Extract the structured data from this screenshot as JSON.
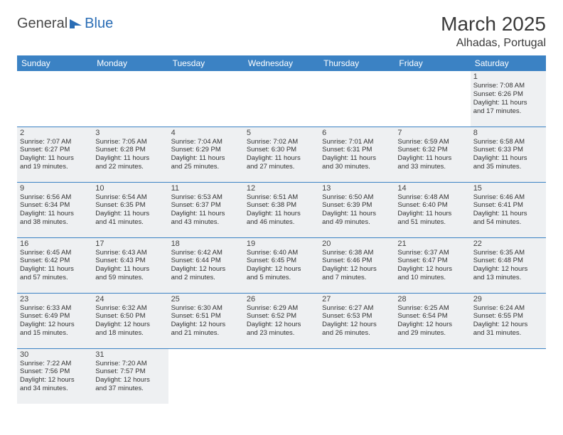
{
  "logo": {
    "word1": "General",
    "word2": "Blue"
  },
  "title": "March 2025",
  "location": "Alhadas, Portugal",
  "colors": {
    "header_bg": "#3b82c4",
    "header_fg": "#ffffff",
    "cell_fill": "#eef0f2",
    "cell_border": "#3b82c4",
    "logo_blue": "#2a6db5"
  },
  "weekdays": [
    "Sunday",
    "Monday",
    "Tuesday",
    "Wednesday",
    "Thursday",
    "Friday",
    "Saturday"
  ],
  "weeks": [
    [
      null,
      null,
      null,
      null,
      null,
      null,
      {
        "d": "1",
        "sr": "Sunrise: 7:08 AM",
        "ss": "Sunset: 6:26 PM",
        "dl1": "Daylight: 11 hours",
        "dl2": "and 17 minutes."
      }
    ],
    [
      {
        "d": "2",
        "sr": "Sunrise: 7:07 AM",
        "ss": "Sunset: 6:27 PM",
        "dl1": "Daylight: 11 hours",
        "dl2": "and 19 minutes."
      },
      {
        "d": "3",
        "sr": "Sunrise: 7:05 AM",
        "ss": "Sunset: 6:28 PM",
        "dl1": "Daylight: 11 hours",
        "dl2": "and 22 minutes."
      },
      {
        "d": "4",
        "sr": "Sunrise: 7:04 AM",
        "ss": "Sunset: 6:29 PM",
        "dl1": "Daylight: 11 hours",
        "dl2": "and 25 minutes."
      },
      {
        "d": "5",
        "sr": "Sunrise: 7:02 AM",
        "ss": "Sunset: 6:30 PM",
        "dl1": "Daylight: 11 hours",
        "dl2": "and 27 minutes."
      },
      {
        "d": "6",
        "sr": "Sunrise: 7:01 AM",
        "ss": "Sunset: 6:31 PM",
        "dl1": "Daylight: 11 hours",
        "dl2": "and 30 minutes."
      },
      {
        "d": "7",
        "sr": "Sunrise: 6:59 AM",
        "ss": "Sunset: 6:32 PM",
        "dl1": "Daylight: 11 hours",
        "dl2": "and 33 minutes."
      },
      {
        "d": "8",
        "sr": "Sunrise: 6:58 AM",
        "ss": "Sunset: 6:33 PM",
        "dl1": "Daylight: 11 hours",
        "dl2": "and 35 minutes."
      }
    ],
    [
      {
        "d": "9",
        "sr": "Sunrise: 6:56 AM",
        "ss": "Sunset: 6:34 PM",
        "dl1": "Daylight: 11 hours",
        "dl2": "and 38 minutes."
      },
      {
        "d": "10",
        "sr": "Sunrise: 6:54 AM",
        "ss": "Sunset: 6:35 PM",
        "dl1": "Daylight: 11 hours",
        "dl2": "and 41 minutes."
      },
      {
        "d": "11",
        "sr": "Sunrise: 6:53 AM",
        "ss": "Sunset: 6:37 PM",
        "dl1": "Daylight: 11 hours",
        "dl2": "and 43 minutes."
      },
      {
        "d": "12",
        "sr": "Sunrise: 6:51 AM",
        "ss": "Sunset: 6:38 PM",
        "dl1": "Daylight: 11 hours",
        "dl2": "and 46 minutes."
      },
      {
        "d": "13",
        "sr": "Sunrise: 6:50 AM",
        "ss": "Sunset: 6:39 PM",
        "dl1": "Daylight: 11 hours",
        "dl2": "and 49 minutes."
      },
      {
        "d": "14",
        "sr": "Sunrise: 6:48 AM",
        "ss": "Sunset: 6:40 PM",
        "dl1": "Daylight: 11 hours",
        "dl2": "and 51 minutes."
      },
      {
        "d": "15",
        "sr": "Sunrise: 6:46 AM",
        "ss": "Sunset: 6:41 PM",
        "dl1": "Daylight: 11 hours",
        "dl2": "and 54 minutes."
      }
    ],
    [
      {
        "d": "16",
        "sr": "Sunrise: 6:45 AM",
        "ss": "Sunset: 6:42 PM",
        "dl1": "Daylight: 11 hours",
        "dl2": "and 57 minutes."
      },
      {
        "d": "17",
        "sr": "Sunrise: 6:43 AM",
        "ss": "Sunset: 6:43 PM",
        "dl1": "Daylight: 11 hours",
        "dl2": "and 59 minutes."
      },
      {
        "d": "18",
        "sr": "Sunrise: 6:42 AM",
        "ss": "Sunset: 6:44 PM",
        "dl1": "Daylight: 12 hours",
        "dl2": "and 2 minutes."
      },
      {
        "d": "19",
        "sr": "Sunrise: 6:40 AM",
        "ss": "Sunset: 6:45 PM",
        "dl1": "Daylight: 12 hours",
        "dl2": "and 5 minutes."
      },
      {
        "d": "20",
        "sr": "Sunrise: 6:38 AM",
        "ss": "Sunset: 6:46 PM",
        "dl1": "Daylight: 12 hours",
        "dl2": "and 7 minutes."
      },
      {
        "d": "21",
        "sr": "Sunrise: 6:37 AM",
        "ss": "Sunset: 6:47 PM",
        "dl1": "Daylight: 12 hours",
        "dl2": "and 10 minutes."
      },
      {
        "d": "22",
        "sr": "Sunrise: 6:35 AM",
        "ss": "Sunset: 6:48 PM",
        "dl1": "Daylight: 12 hours",
        "dl2": "and 13 minutes."
      }
    ],
    [
      {
        "d": "23",
        "sr": "Sunrise: 6:33 AM",
        "ss": "Sunset: 6:49 PM",
        "dl1": "Daylight: 12 hours",
        "dl2": "and 15 minutes."
      },
      {
        "d": "24",
        "sr": "Sunrise: 6:32 AM",
        "ss": "Sunset: 6:50 PM",
        "dl1": "Daylight: 12 hours",
        "dl2": "and 18 minutes."
      },
      {
        "d": "25",
        "sr": "Sunrise: 6:30 AM",
        "ss": "Sunset: 6:51 PM",
        "dl1": "Daylight: 12 hours",
        "dl2": "and 21 minutes."
      },
      {
        "d": "26",
        "sr": "Sunrise: 6:29 AM",
        "ss": "Sunset: 6:52 PM",
        "dl1": "Daylight: 12 hours",
        "dl2": "and 23 minutes."
      },
      {
        "d": "27",
        "sr": "Sunrise: 6:27 AM",
        "ss": "Sunset: 6:53 PM",
        "dl1": "Daylight: 12 hours",
        "dl2": "and 26 minutes."
      },
      {
        "d": "28",
        "sr": "Sunrise: 6:25 AM",
        "ss": "Sunset: 6:54 PM",
        "dl1": "Daylight: 12 hours",
        "dl2": "and 29 minutes."
      },
      {
        "d": "29",
        "sr": "Sunrise: 6:24 AM",
        "ss": "Sunset: 6:55 PM",
        "dl1": "Daylight: 12 hours",
        "dl2": "and 31 minutes."
      }
    ],
    [
      {
        "d": "30",
        "sr": "Sunrise: 7:22 AM",
        "ss": "Sunset: 7:56 PM",
        "dl1": "Daylight: 12 hours",
        "dl2": "and 34 minutes."
      },
      {
        "d": "31",
        "sr": "Sunrise: 7:20 AM",
        "ss": "Sunset: 7:57 PM",
        "dl1": "Daylight: 12 hours",
        "dl2": "and 37 minutes."
      },
      null,
      null,
      null,
      null,
      null
    ]
  ]
}
